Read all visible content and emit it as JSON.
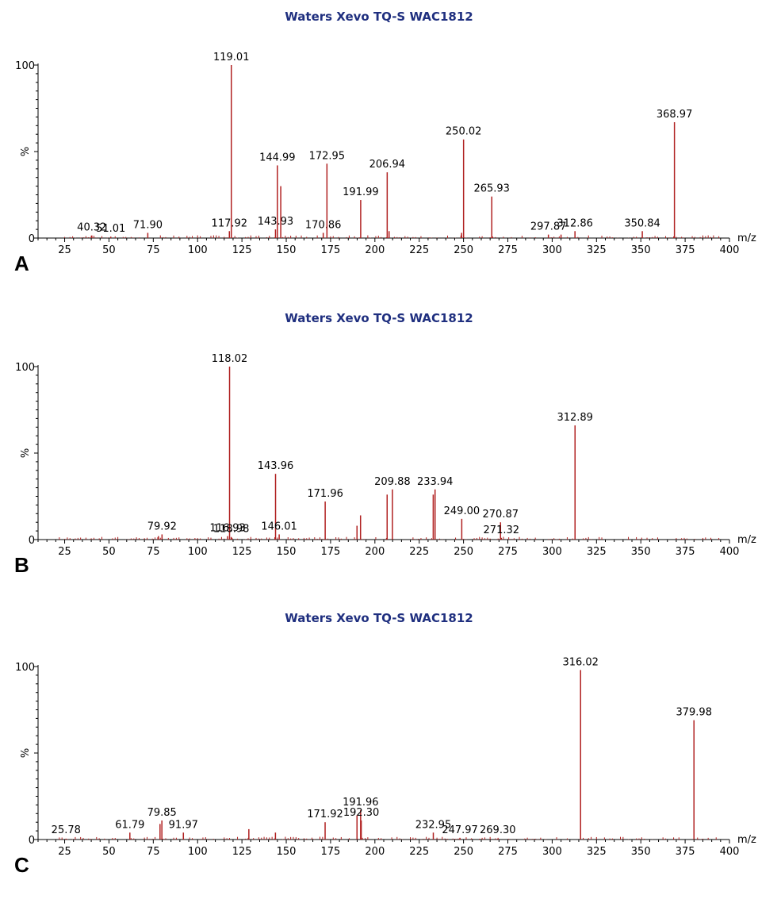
{
  "chart_data": [
    {
      "type": "bar",
      "panel_label": "A",
      "title": "Waters Xevo TQ-S WAC1812",
      "xlabel": "m/z",
      "ylabel": "%",
      "xlim": [
        10,
        400
      ],
      "ylim": [
        0,
        100
      ],
      "x_ticks": [
        "25",
        "50",
        "75",
        "100",
        "125",
        "150",
        "175",
        "200",
        "225",
        "250",
        "275",
        "300",
        "325",
        "350",
        "375",
        "400"
      ],
      "y_ticks": [
        "0",
        "100"
      ],
      "peaks": [
        {
          "mz": 40.32,
          "intensity": 1.5,
          "label": "40.32"
        },
        {
          "mz": 51.01,
          "intensity": 0.8,
          "label": "51.01"
        },
        {
          "mz": 71.9,
          "intensity": 3,
          "label": "71.90"
        },
        {
          "mz": 117.92,
          "intensity": 4,
          "label": "117.92"
        },
        {
          "mz": 119.01,
          "intensity": 100,
          "label": "119.01"
        },
        {
          "mz": 143.93,
          "intensity": 5,
          "label": "143.93"
        },
        {
          "mz": 144.99,
          "intensity": 42,
          "label": "144.99"
        },
        {
          "mz": 146.9,
          "intensity": 30
        },
        {
          "mz": 170.86,
          "intensity": 3,
          "label": "170.86"
        },
        {
          "mz": 172.95,
          "intensity": 43,
          "label": "172.95"
        },
        {
          "mz": 191.99,
          "intensity": 22,
          "label": "191.99"
        },
        {
          "mz": 206.94,
          "intensity": 38,
          "label": "206.94"
        },
        {
          "mz": 208,
          "intensity": 4
        },
        {
          "mz": 250.02,
          "intensity": 57,
          "label": "250.02"
        },
        {
          "mz": 248.9,
          "intensity": 3
        },
        {
          "mz": 265.93,
          "intensity": 24,
          "label": "265.93"
        },
        {
          "mz": 297.87,
          "intensity": 2,
          "label": "297.87"
        },
        {
          "mz": 312.86,
          "intensity": 4,
          "label": "312.86"
        },
        {
          "mz": 305,
          "intensity": 2
        },
        {
          "mz": 350.84,
          "intensity": 4,
          "label": "350.84"
        },
        {
          "mz": 368.97,
          "intensity": 67,
          "label": "368.97"
        }
      ]
    },
    {
      "type": "bar",
      "panel_label": "B",
      "title": "Waters Xevo TQ-S WAC1812",
      "xlabel": "m/z",
      "ylabel": "%",
      "xlim": [
        10,
        400
      ],
      "ylim": [
        0,
        100
      ],
      "x_ticks": [
        "25",
        "50",
        "75",
        "100",
        "125",
        "150",
        "175",
        "200",
        "225",
        "250",
        "275",
        "300",
        "325",
        "350",
        "375",
        "400"
      ],
      "y_ticks": [
        "0",
        "100"
      ],
      "peaks": [
        {
          "mz": 79.92,
          "intensity": 3,
          "label": "79.92"
        },
        {
          "mz": 77.9,
          "intensity": 2
        },
        {
          "mz": 116.93,
          "intensity": 2,
          "label": "116.93"
        },
        {
          "mz": 118.02,
          "intensity": 100,
          "label": "118.02"
        },
        {
          "mz": 118.98,
          "intensity": 1.5,
          "label": "118.98"
        },
        {
          "mz": 143.96,
          "intensity": 38,
          "label": "143.96"
        },
        {
          "mz": 146.01,
          "intensity": 3,
          "label": "146.01"
        },
        {
          "mz": 171.96,
          "intensity": 22,
          "label": "171.96"
        },
        {
          "mz": 189.9,
          "intensity": 8
        },
        {
          "mz": 191.9,
          "intensity": 14
        },
        {
          "mz": 206.9,
          "intensity": 26
        },
        {
          "mz": 209.88,
          "intensity": 29,
          "label": "209.88"
        },
        {
          "mz": 232.9,
          "intensity": 26
        },
        {
          "mz": 233.94,
          "intensity": 29,
          "label": "233.94"
        },
        {
          "mz": 249.0,
          "intensity": 12,
          "label": "249.00"
        },
        {
          "mz": 270.87,
          "intensity": 10,
          "label": "270.87"
        },
        {
          "mz": 271.32,
          "intensity": 1,
          "label": "271.32"
        },
        {
          "mz": 312.89,
          "intensity": 66,
          "label": "312.89"
        }
      ]
    },
    {
      "type": "bar",
      "panel_label": "C",
      "title": "Waters Xevo TQ-S WAC1812",
      "xlabel": "m/z",
      "ylabel": "%",
      "xlim": [
        10,
        400
      ],
      "ylim": [
        0,
        100
      ],
      "x_ticks": [
        "25",
        "50",
        "75",
        "100",
        "125",
        "150",
        "175",
        "200",
        "225",
        "250",
        "275",
        "300",
        "325",
        "350",
        "375",
        "400"
      ],
      "y_ticks": [
        "0",
        "100"
      ],
      "peaks": [
        {
          "mz": 25.78,
          "intensity": 0.5,
          "label": "25.78"
        },
        {
          "mz": 61.79,
          "intensity": 4,
          "label": "61.79"
        },
        {
          "mz": 78.8,
          "intensity": 9
        },
        {
          "mz": 79.85,
          "intensity": 11,
          "label": "79.85"
        },
        {
          "mz": 91.97,
          "intensity": 4,
          "label": "91.97"
        },
        {
          "mz": 128.9,
          "intensity": 6
        },
        {
          "mz": 143.9,
          "intensity": 4
        },
        {
          "mz": 171.92,
          "intensity": 10,
          "label": "171.92"
        },
        {
          "mz": 189.9,
          "intensity": 14
        },
        {
          "mz": 191.96,
          "intensity": 17,
          "label": "191.96"
        },
        {
          "mz": 192.3,
          "intensity": 11,
          "label": "192.30"
        },
        {
          "mz": 232.95,
          "intensity": 4,
          "label": "232.95"
        },
        {
          "mz": 247.97,
          "intensity": 1,
          "label": "247.97"
        },
        {
          "mz": 269.3,
          "intensity": 0.5,
          "label": "269.30"
        },
        {
          "mz": 316.02,
          "intensity": 98,
          "label": "316.02"
        },
        {
          "mz": 379.98,
          "intensity": 69,
          "label": "379.98"
        }
      ]
    }
  ],
  "colors": {
    "peak": "#b02020",
    "title": "#1f2f7f",
    "axis": "#000000"
  }
}
